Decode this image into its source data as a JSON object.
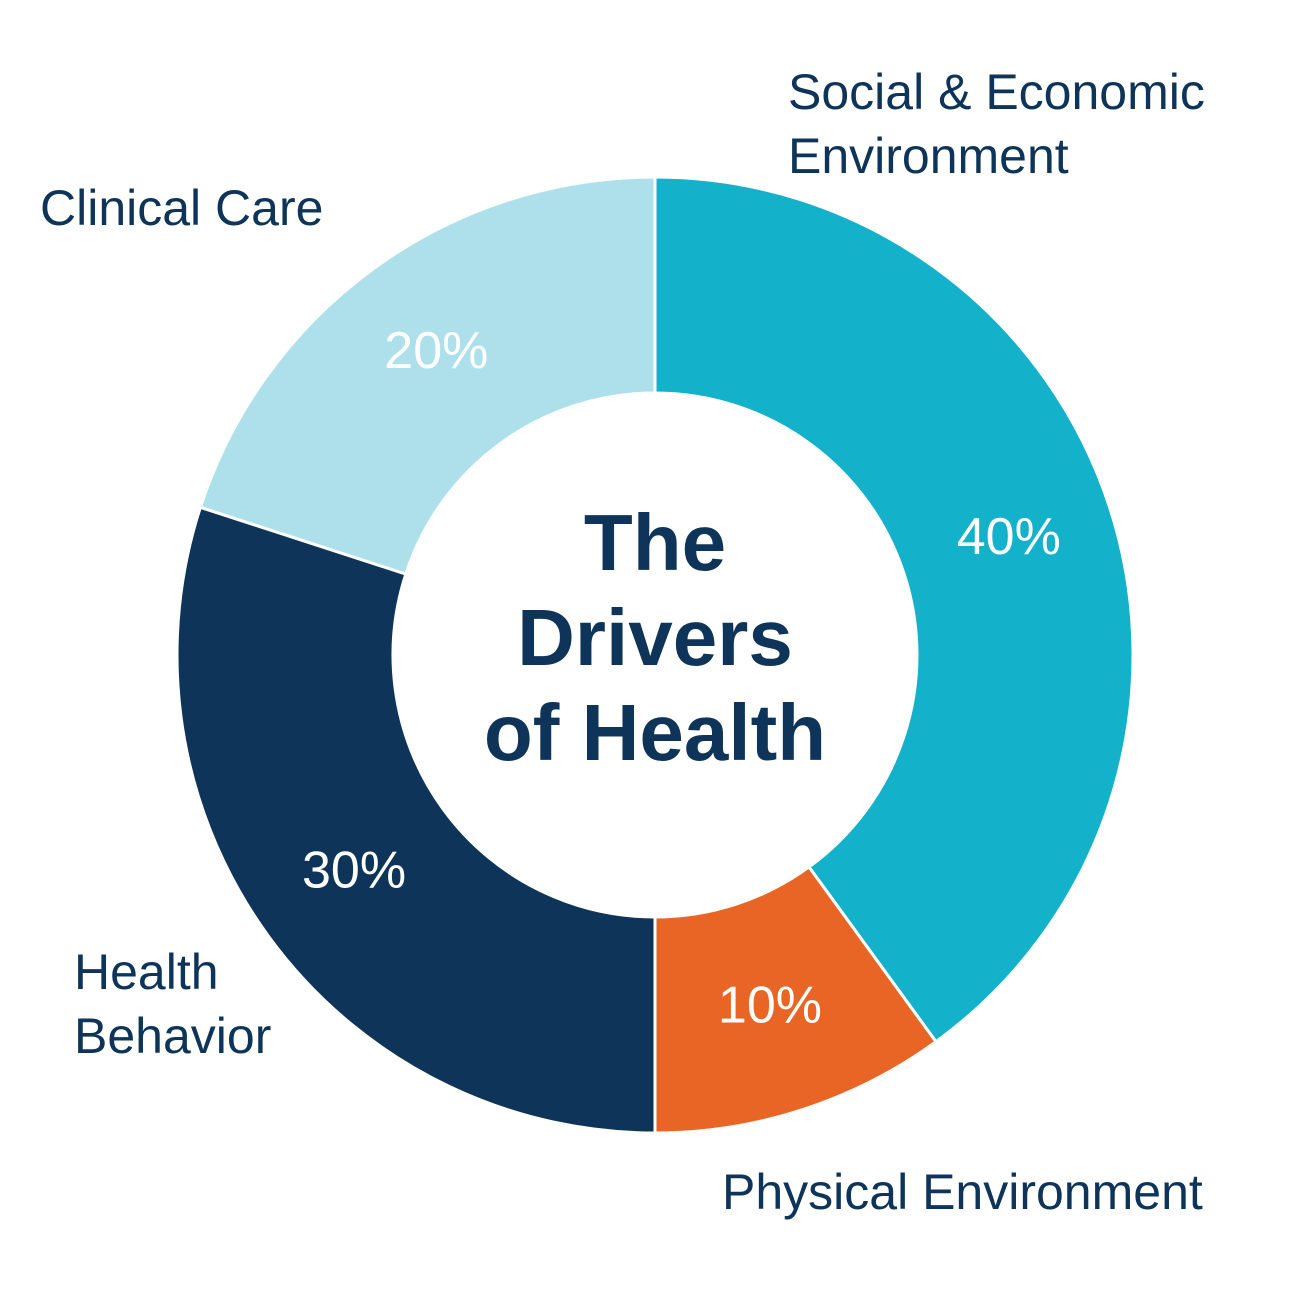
{
  "chart_data": {
    "type": "donut",
    "title": "The Drivers of Health",
    "categories": [
      "Social & Economic Environment",
      "Physical Environment",
      "Health Behavior",
      "Clinical Care"
    ],
    "values": [
      40,
      10,
      30,
      20
    ],
    "value_labels": [
      "40%",
      "10%",
      "30%",
      "20%"
    ],
    "colors": [
      "#14b1cb",
      "#e86526",
      "#0e3559",
      "#ade0eb"
    ]
  }
}
